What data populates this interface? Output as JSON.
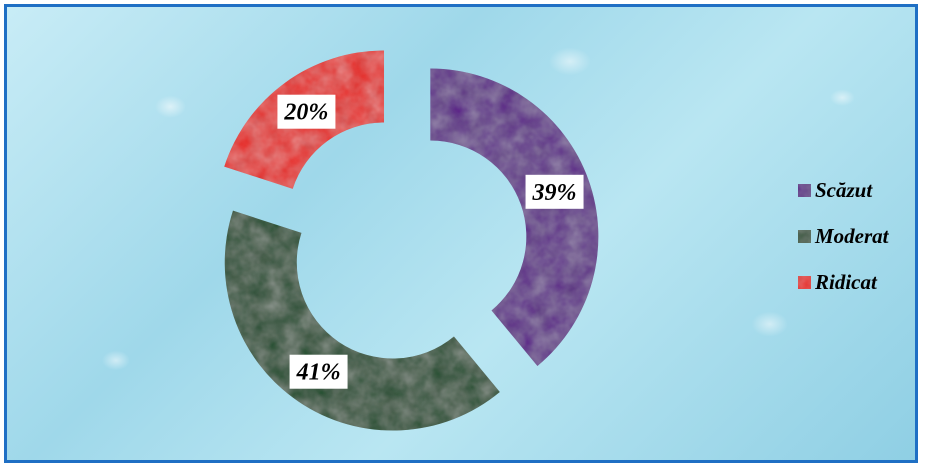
{
  "chart_data": {
    "type": "pie",
    "style": "exploded-doughnut",
    "title": "",
    "categories": [
      "Scăzut",
      "Moderat",
      "Ridicat"
    ],
    "values": [
      39,
      41,
      20
    ],
    "labels": [
      "39%",
      "41%",
      "20%"
    ],
    "colors": [
      "#5b2088",
      "#1f4d2c",
      "#e8231c"
    ],
    "legend": {
      "position": "right",
      "items": [
        {
          "label": "Scăzut",
          "color": "#5b2088"
        },
        {
          "label": "Moderat",
          "color": "#1f4d2c"
        },
        {
          "label": "Ridicat",
          "color": "#e8231c"
        }
      ]
    }
  }
}
